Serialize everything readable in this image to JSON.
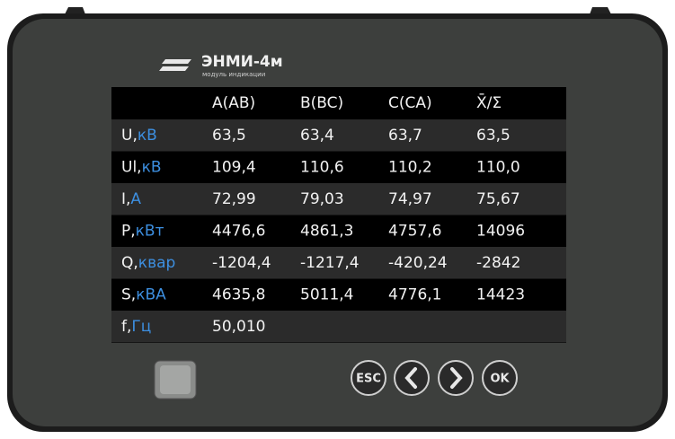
{
  "logo": {
    "title": "ЭНМИ-4м",
    "subtitle": "модуль индикации"
  },
  "table": {
    "header": [
      "A(AB)",
      "B(BC)",
      "C(CA)",
      "X̄/Σ"
    ],
    "rows": [
      {
        "label": "U,",
        "unit": "кВ",
        "values": [
          "63,5",
          "63,4",
          "63,7",
          "63,5"
        ]
      },
      {
        "label": "Ul,",
        "unit": "кВ",
        "values": [
          "109,4",
          "110,6",
          "110,2",
          "110,0"
        ]
      },
      {
        "label": "I,",
        "unit": "А",
        "values": [
          "72,99",
          "79,03",
          "74,97",
          "75,67"
        ]
      },
      {
        "label": "P,",
        "unit": "кВт",
        "values": [
          "4476,6",
          "4861,3",
          "4757,6",
          "14096"
        ]
      },
      {
        "label": "Q,",
        "unit": "квар",
        "values": [
          "-1204,4",
          "-1217,4",
          "-420,24",
          "-2842"
        ]
      },
      {
        "label": "S,",
        "unit": "кВА",
        "values": [
          "4635,8",
          "5011,4",
          "4776,1",
          "14423"
        ]
      },
      {
        "label": "f,",
        "unit": "Гц",
        "values": [
          "50,010"
        ]
      }
    ]
  },
  "buttons": {
    "esc": "ESC",
    "ok": "OK"
  }
}
